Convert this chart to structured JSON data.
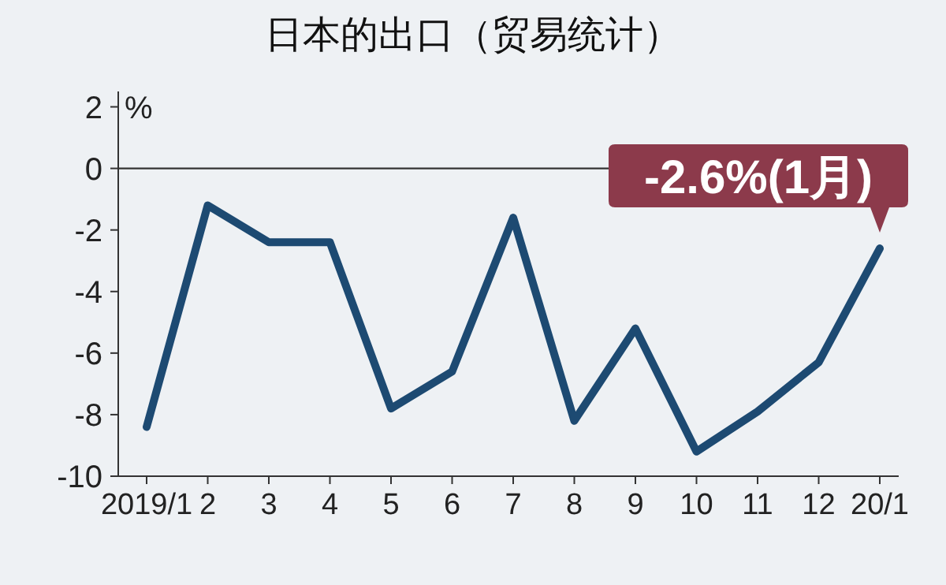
{
  "chart_data": {
    "type": "line",
    "title": "日本的出口（贸易统计）",
    "ylabel": "%",
    "categories": [
      "2019/1",
      "2",
      "3",
      "4",
      "5",
      "6",
      "7",
      "8",
      "9",
      "10",
      "11",
      "12",
      "20/1"
    ],
    "series": [
      {
        "color": "#1d4a72",
        "values": [
          -8.4,
          -1.2,
          -2.4,
          -2.4,
          -7.8,
          -6.6,
          -1.6,
          -8.2,
          -5.2,
          -9.2,
          -7.9,
          -6.3,
          -2.6
        ]
      }
    ],
    "ylim": [
      -10,
      2.5
    ],
    "yticks": [
      -10,
      -8,
      -6,
      -4,
      -2,
      0,
      2
    ],
    "ref_lines": [
      {
        "axis": "y",
        "value": 0,
        "color": "#333333"
      }
    ],
    "annotations": [
      {
        "text": "-2.6%(1月)",
        "x": "20/1",
        "y": -2.6
      }
    ]
  }
}
